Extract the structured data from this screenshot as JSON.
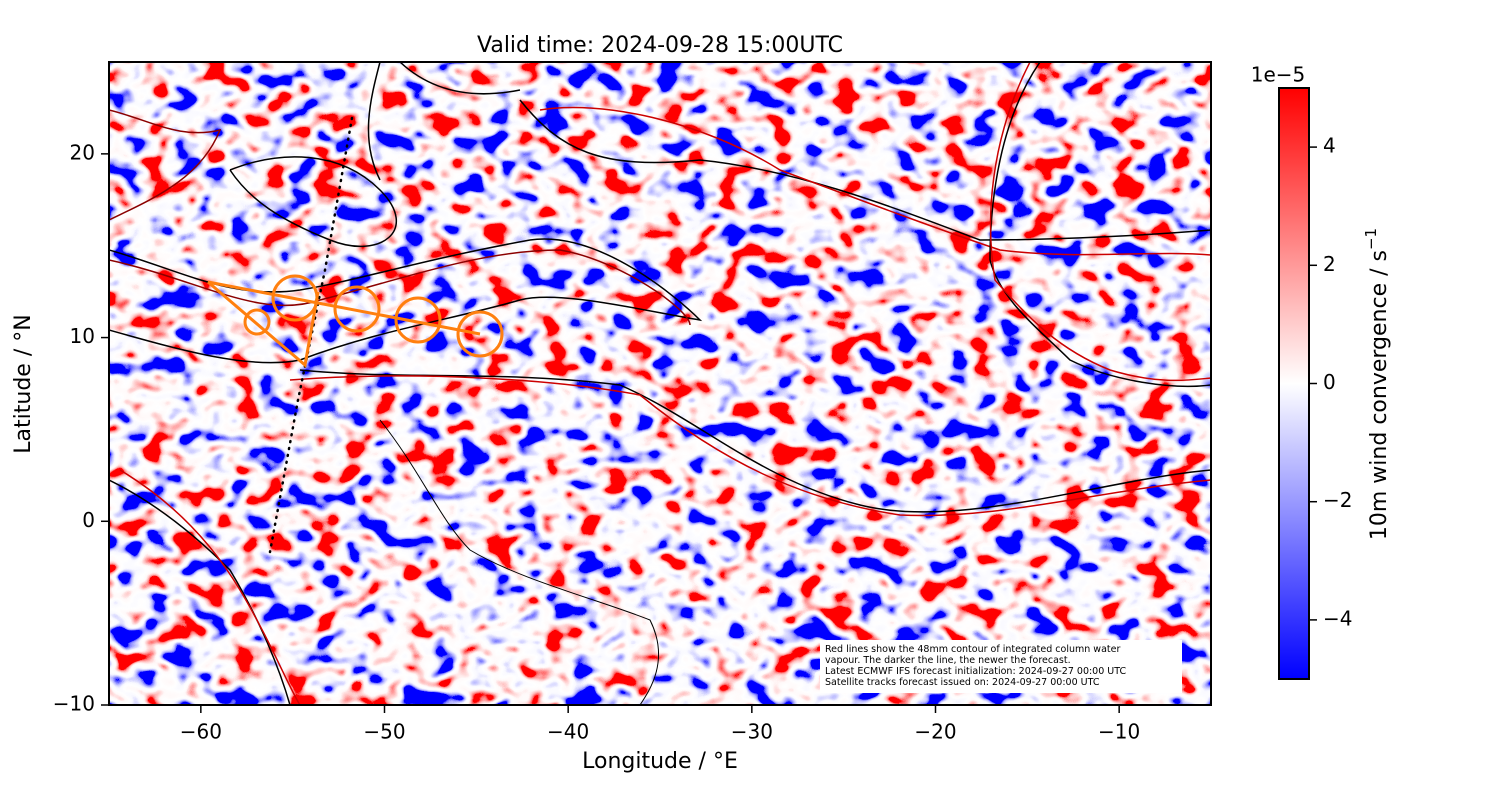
{
  "chart_data": {
    "type": "map",
    "title": "Valid time: 2024-09-28 15:00UTC",
    "xlabel": "Longitude / °E",
    "ylabel": "Latitude / °N",
    "xlim": [
      -65,
      -5
    ],
    "ylim": [
      -10,
      25
    ],
    "xticks": [
      {
        "value": -60,
        "label": "−60"
      },
      {
        "value": -50,
        "label": "−50"
      },
      {
        "value": -40,
        "label": "−40"
      },
      {
        "value": -30,
        "label": "−30"
      },
      {
        "value": -20,
        "label": "−20"
      },
      {
        "value": -10,
        "label": "−10"
      }
    ],
    "yticks": [
      {
        "value": -10,
        "label": "−10"
      },
      0,
      10,
      20
    ],
    "colorbar": {
      "label": "10m wind convergence / s",
      "label_exponent": "−1",
      "offset_text": "1e−5",
      "lim": [
        -5,
        5
      ],
      "ticks": [
        {
          "value": -4,
          "label": "−4"
        },
        {
          "value": -2,
          "label": "−2"
        },
        0,
        2,
        4
      ],
      "colors": [
        "#0000ff",
        "#ffffff",
        "#ff0000"
      ]
    },
    "annotation": [
      "Red lines show the 48mm contour of integrated column water",
      "vapour. The darker the line, the newer the forecast.",
      "Latest ECMWF IFS forecast initialization: 2024-09-27 00:00 UTC",
      "Satellite tracks forecast issued on: 2024-09-27 00:00 UTC"
    ]
  }
}
